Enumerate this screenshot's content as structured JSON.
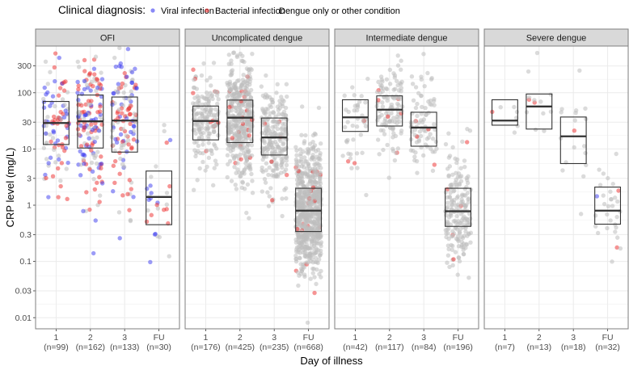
{
  "chart_data": {
    "type": "box",
    "scale": "log10",
    "legend": {
      "title": "Clinical diagnosis:",
      "position": "top",
      "entries": [
        {
          "key": "viral",
          "label": "Viral infection",
          "color": "#3a3af0"
        },
        {
          "key": "bacterial",
          "label": "Bacterial infection",
          "color": "#ee2a2a"
        },
        {
          "key": "other",
          "label": "Dengue only or other condition",
          "color": "#bdbdbd"
        }
      ]
    },
    "xlabel": "Day of illness",
    "ylabel": "CRP level (mg/L)",
    "ylim": [
      0.008,
      680
    ],
    "yticks": [
      0.01,
      0.03,
      0.1,
      0.3,
      1,
      3,
      10,
      30,
      100,
      300
    ],
    "ytick_labels": [
      "0.01",
      "0.03",
      "0.1",
      "0.3",
      "1",
      "3",
      "10",
      "30",
      "100",
      "300"
    ],
    "grid": true,
    "panels": [
      {
        "title": "OFI",
        "groups": [
          {
            "day": "1",
            "n_label": "(n=99)",
            "n": 99,
            "q1": 12,
            "median": 29,
            "q3": 70,
            "viral": 35,
            "bacterial": 35
          },
          {
            "day": "2",
            "n_label": "(n=162)",
            "n": 162,
            "q1": 10.4,
            "median": 31,
            "q3": 91,
            "viral": 55,
            "bacterial": 60
          },
          {
            "day": "3",
            "n_label": "(n=133)",
            "n": 133,
            "q1": 8.8,
            "median": 32,
            "q3": 84,
            "viral": 40,
            "bacterial": 45
          },
          {
            "day": "FU",
            "n_label": "(n=30)",
            "n": 30,
            "q1": 0.45,
            "median": 1.4,
            "q3": 4.05,
            "viral": 10,
            "bacterial": 8
          }
        ]
      },
      {
        "title": "Uncomplicated dengue",
        "groups": [
          {
            "day": "1",
            "n_label": "(n=176)",
            "n": 176,
            "q1": 14.5,
            "median": 31.5,
            "q3": 58,
            "viral": 0,
            "bacterial": 10
          },
          {
            "day": "2",
            "n_label": "(n=425)",
            "n": 425,
            "q1": 13,
            "median": 36,
            "q3": 74,
            "viral": 0,
            "bacterial": 20
          },
          {
            "day": "3",
            "n_label": "(n=235)",
            "n": 235,
            "q1": 7.8,
            "median": 16,
            "q3": 35.5,
            "viral": 0,
            "bacterial": 6
          },
          {
            "day": "FU",
            "n_label": "(n=668)",
            "n": 668,
            "q1": 0.34,
            "median": 0.8,
            "q3": 2.0,
            "viral": 0,
            "bacterial": 20
          }
        ]
      },
      {
        "title": "Intermediate dengue",
        "groups": [
          {
            "day": "1",
            "n_label": "(n=42)",
            "n": 42,
            "q1": 20.5,
            "median": 36.5,
            "q3": 75,
            "viral": 0,
            "bacterial": 3
          },
          {
            "day": "2",
            "n_label": "(n=117)",
            "n": 117,
            "q1": 25.6,
            "median": 50,
            "q3": 88,
            "viral": 0,
            "bacterial": 6
          },
          {
            "day": "3",
            "n_label": "(n=84)",
            "n": 84,
            "q1": 11.2,
            "median": 24,
            "q3": 45,
            "viral": 0,
            "bacterial": 4
          },
          {
            "day": "FU",
            "n_label": "(n=196)",
            "n": 196,
            "q1": 0.42,
            "median": 0.78,
            "q3": 2.0,
            "viral": 0,
            "bacterial": 5
          }
        ]
      },
      {
        "title": "Severe dengue",
        "groups": [
          {
            "day": "1",
            "n_label": "(n=7)",
            "n": 7,
            "q1": 26.5,
            "median": 32,
            "q3": 75,
            "viral": 0,
            "bacterial": 1
          },
          {
            "day": "2",
            "n_label": "(n=13)",
            "n": 13,
            "q1": 22.6,
            "median": 57,
            "q3": 95,
            "viral": 0,
            "bacterial": 2
          },
          {
            "day": "3",
            "n_label": "(n=18)",
            "n": 18,
            "q1": 5.5,
            "median": 16.8,
            "q3": 37,
            "viral": 0,
            "bacterial": 1
          },
          {
            "day": "FU",
            "n_label": "(n=32)",
            "n": 32,
            "q1": 0.46,
            "median": 0.8,
            "q3": 2.1,
            "viral": 1,
            "bacterial": 2
          }
        ]
      }
    ]
  }
}
